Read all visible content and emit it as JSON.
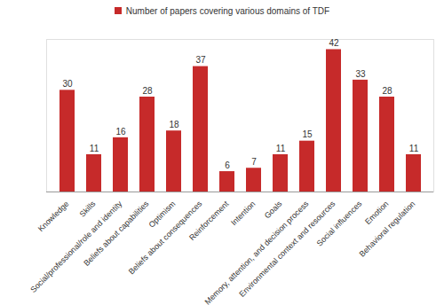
{
  "chart_data": {
    "type": "bar",
    "categories": [
      "Knowledge",
      "Skills",
      "Social/professional/role and identity",
      "Beliefs about capabilities",
      "Optimism",
      "Beliefs about consequences",
      "Reinforcement",
      "Intention",
      "Goals",
      "Memory, attention, and decision process",
      "Environmental context and resources",
      "Social influences",
      "Emotion",
      "Behavioral regulation"
    ],
    "series": [
      {
        "name": "Number of papers covering various domains of TDF",
        "color": "#c62a2a",
        "values": [
          30,
          11,
          16,
          28,
          18,
          37,
          6,
          7,
          11,
          15,
          42,
          33,
          28,
          11
        ]
      }
    ],
    "ylim": [
      0,
      45
    ],
    "yticks": [],
    "tick_labels": "x",
    "legend": "top",
    "data_labels": true,
    "grid": false
  }
}
